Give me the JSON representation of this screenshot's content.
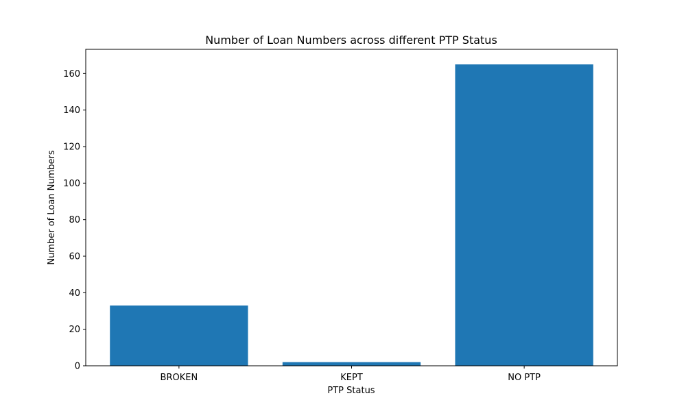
{
  "chart_data": {
    "type": "bar",
    "title": "Number of Loan Numbers across different PTP Status",
    "xlabel": "PTP Status",
    "ylabel": "Number of Loan Numbers",
    "categories": [
      "BROKEN",
      "KEPT",
      "NO PTP"
    ],
    "values": [
      33,
      2,
      165
    ],
    "ylim": [
      0,
      173.25
    ],
    "yticks": [
      0,
      20,
      40,
      60,
      80,
      100,
      120,
      140,
      160
    ],
    "ytick_labels": [
      "0",
      "20",
      "40",
      "60",
      "80",
      "100",
      "120",
      "140",
      "160"
    ],
    "bar_color": "#1f77b4",
    "grid": false,
    "legend": "none"
  }
}
